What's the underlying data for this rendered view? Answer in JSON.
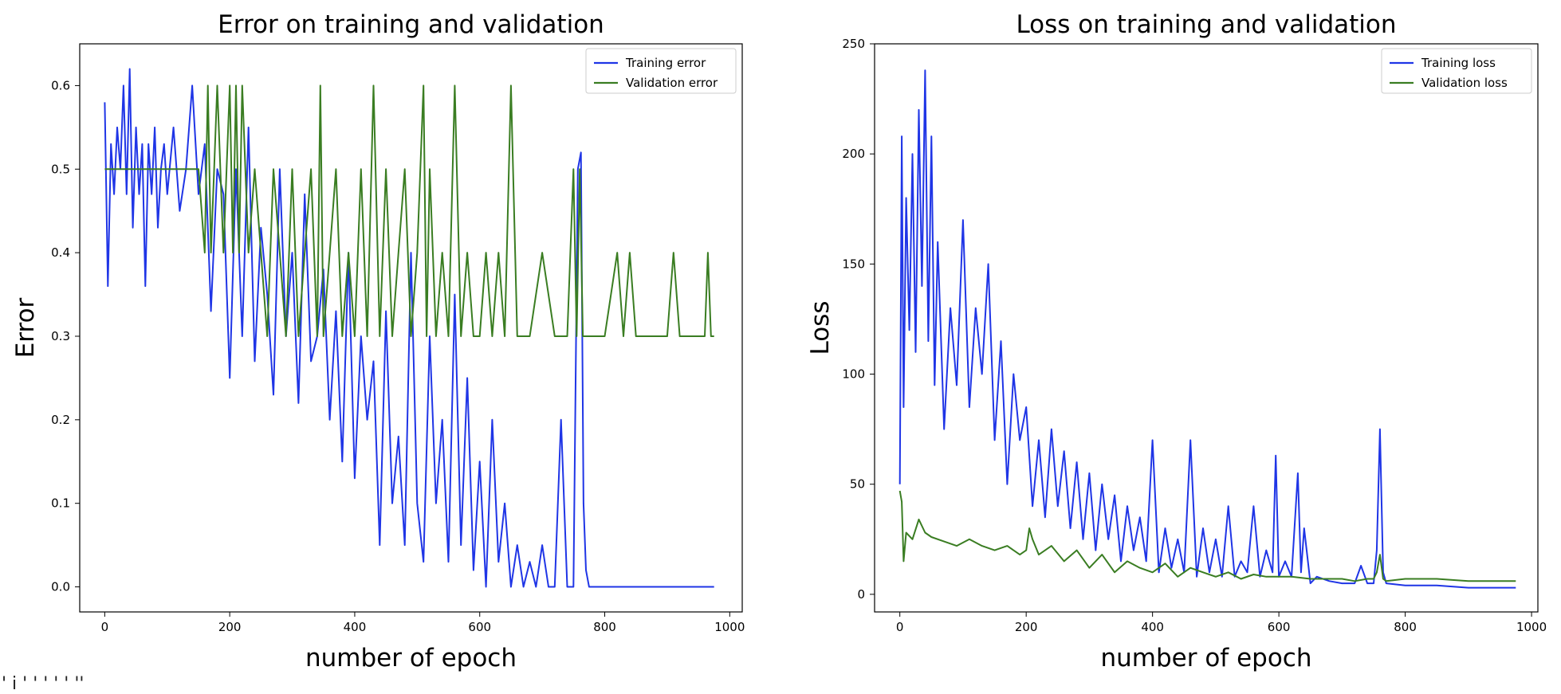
{
  "figure_caption_cutoff": "' i  '  ' ' ' ' ''",
  "chart_data": [
    {
      "type": "line",
      "title": "Error on training and validation",
      "xlabel": "number of epoch",
      "ylabel": "Error",
      "xlim": [
        -40,
        1020
      ],
      "ylim": [
        -0.03,
        0.65
      ],
      "xticks": [
        0,
        200,
        400,
        600,
        800,
        1000
      ],
      "yticks": [
        0.0,
        0.1,
        0.2,
        0.3,
        0.4,
        0.5,
        0.6
      ],
      "xtick_labels": [
        "0",
        "200",
        "400",
        "600",
        "800",
        "1000"
      ],
      "ytick_labels": [
        "0.0",
        "0.1",
        "0.2",
        "0.3",
        "0.4",
        "0.5",
        "0.6"
      ],
      "grid": false,
      "legend": "top-right",
      "series": [
        {
          "name": "Training error",
          "color": "#1f35e6",
          "x": [
            0,
            5,
            10,
            15,
            20,
            25,
            30,
            35,
            40,
            45,
            50,
            55,
            60,
            65,
            70,
            75,
            80,
            85,
            90,
            95,
            100,
            110,
            120,
            130,
            140,
            150,
            160,
            170,
            180,
            190,
            200,
            210,
            220,
            230,
            240,
            250,
            260,
            270,
            280,
            290,
            300,
            310,
            320,
            330,
            340,
            350,
            360,
            370,
            380,
            390,
            400,
            410,
            420,
            430,
            440,
            450,
            460,
            470,
            480,
            490,
            500,
            510,
            520,
            530,
            540,
            550,
            560,
            570,
            580,
            590,
            600,
            610,
            620,
            630,
            640,
            650,
            660,
            670,
            680,
            690,
            700,
            710,
            720,
            730,
            740,
            750,
            757,
            762,
            766,
            770,
            775,
            780,
            790,
            800,
            850,
            900,
            975
          ],
          "y": [
            0.58,
            0.36,
            0.53,
            0.47,
            0.55,
            0.5,
            0.6,
            0.47,
            0.62,
            0.43,
            0.55,
            0.47,
            0.53,
            0.36,
            0.53,
            0.47,
            0.55,
            0.43,
            0.5,
            0.53,
            0.47,
            0.55,
            0.45,
            0.5,
            0.6,
            0.47,
            0.53,
            0.33,
            0.5,
            0.47,
            0.25,
            0.5,
            0.3,
            0.55,
            0.27,
            0.43,
            0.35,
            0.23,
            0.5,
            0.3,
            0.4,
            0.22,
            0.47,
            0.27,
            0.3,
            0.38,
            0.2,
            0.33,
            0.15,
            0.4,
            0.13,
            0.3,
            0.2,
            0.27,
            0.05,
            0.33,
            0.1,
            0.18,
            0.05,
            0.4,
            0.1,
            0.03,
            0.3,
            0.1,
            0.2,
            0.03,
            0.35,
            0.05,
            0.25,
            0.02,
            0.15,
            0.0,
            0.2,
            0.03,
            0.1,
            0.0,
            0.05,
            0.0,
            0.03,
            0.0,
            0.05,
            0.0,
            0.0,
            0.2,
            0.0,
            0.0,
            0.5,
            0.52,
            0.1,
            0.02,
            0.0,
            0.0,
            0.0,
            0.0,
            0.0,
            0.0,
            0.0
          ]
        },
        {
          "name": "Validation error",
          "color": "#3a7d22",
          "x": [
            0,
            50,
            100,
            150,
            160,
            165,
            170,
            175,
            180,
            190,
            195,
            200,
            205,
            210,
            215,
            220,
            230,
            240,
            250,
            260,
            270,
            280,
            290,
            300,
            310,
            320,
            330,
            340,
            345,
            350,
            360,
            370,
            380,
            390,
            400,
            410,
            420,
            430,
            440,
            450,
            460,
            470,
            480,
            490,
            500,
            510,
            515,
            520,
            530,
            540,
            550,
            560,
            570,
            580,
            590,
            600,
            610,
            620,
            630,
            640,
            650,
            660,
            680,
            700,
            720,
            740,
            750,
            755,
            760,
            765,
            770,
            800,
            820,
            830,
            840,
            850,
            900,
            910,
            920,
            960,
            965,
            970,
            975
          ],
          "y": [
            0.5,
            0.5,
            0.5,
            0.5,
            0.4,
            0.6,
            0.4,
            0.5,
            0.6,
            0.4,
            0.5,
            0.6,
            0.4,
            0.6,
            0.4,
            0.6,
            0.4,
            0.5,
            0.4,
            0.3,
            0.5,
            0.4,
            0.3,
            0.5,
            0.3,
            0.4,
            0.5,
            0.3,
            0.6,
            0.3,
            0.4,
            0.5,
            0.3,
            0.4,
            0.3,
            0.5,
            0.3,
            0.6,
            0.3,
            0.5,
            0.3,
            0.4,
            0.5,
            0.3,
            0.4,
            0.6,
            0.3,
            0.5,
            0.3,
            0.4,
            0.3,
            0.6,
            0.3,
            0.4,
            0.3,
            0.3,
            0.4,
            0.3,
            0.4,
            0.3,
            0.6,
            0.3,
            0.3,
            0.4,
            0.3,
            0.3,
            0.5,
            0.3,
            0.5,
            0.3,
            0.3,
            0.3,
            0.4,
            0.3,
            0.4,
            0.3,
            0.3,
            0.4,
            0.3,
            0.3,
            0.4,
            0.3,
            0.3
          ]
        }
      ]
    },
    {
      "type": "line",
      "title": "Loss on training and validation",
      "xlabel": "number of epoch",
      "ylabel": "Loss",
      "xlim": [
        -40,
        1010
      ],
      "ylim": [
        -8,
        250
      ],
      "xticks": [
        0,
        200,
        400,
        600,
        800,
        1000
      ],
      "yticks": [
        0,
        50,
        100,
        150,
        200,
        250
      ],
      "xtick_labels": [
        "0",
        "200",
        "400",
        "600",
        "800",
        "1000"
      ],
      "ytick_labels": [
        "0",
        "50",
        "100",
        "150",
        "200",
        "250"
      ],
      "grid": false,
      "legend": "top-right",
      "series": [
        {
          "name": "Training loss",
          "color": "#1f35e6",
          "x": [
            0,
            3,
            6,
            10,
            15,
            20,
            25,
            30,
            35,
            40,
            45,
            50,
            55,
            60,
            70,
            80,
            90,
            100,
            110,
            120,
            130,
            140,
            150,
            160,
            170,
            180,
            190,
            200,
            210,
            220,
            230,
            240,
            250,
            260,
            270,
            280,
            290,
            300,
            310,
            320,
            330,
            340,
            350,
            360,
            370,
            380,
            390,
            400,
            410,
            420,
            430,
            440,
            450,
            460,
            470,
            480,
            490,
            500,
            510,
            520,
            530,
            540,
            550,
            560,
            570,
            580,
            590,
            595,
            600,
            610,
            620,
            630,
            635,
            640,
            650,
            660,
            680,
            700,
            720,
            730,
            740,
            750,
            755,
            760,
            765,
            770,
            800,
            850,
            900,
            975
          ],
          "y": [
            50,
            208,
            85,
            180,
            120,
            200,
            110,
            220,
            140,
            238,
            115,
            208,
            95,
            160,
            75,
            130,
            95,
            170,
            85,
            130,
            100,
            150,
            70,
            115,
            50,
            100,
            70,
            85,
            40,
            70,
            35,
            75,
            40,
            65,
            30,
            60,
            25,
            55,
            20,
            50,
            25,
            45,
            15,
            40,
            20,
            35,
            15,
            70,
            10,
            30,
            12,
            25,
            10,
            70,
            8,
            30,
            10,
            25,
            8,
            40,
            8,
            15,
            10,
            40,
            8,
            20,
            10,
            63,
            8,
            15,
            8,
            55,
            10,
            30,
            5,
            8,
            6,
            5,
            5,
            13,
            5,
            5,
            20,
            75,
            10,
            5,
            4,
            4,
            3,
            3
          ]
        },
        {
          "name": "Validation loss",
          "color": "#3a7d22",
          "x": [
            0,
            3,
            6,
            10,
            20,
            30,
            40,
            50,
            70,
            90,
            110,
            130,
            150,
            170,
            190,
            200,
            205,
            210,
            220,
            240,
            260,
            280,
            300,
            320,
            340,
            360,
            380,
            400,
            420,
            440,
            460,
            480,
            500,
            520,
            540,
            560,
            580,
            600,
            620,
            650,
            700,
            720,
            740,
            750,
            755,
            760,
            765,
            770,
            800,
            850,
            900,
            975
          ],
          "y": [
            47,
            42,
            15,
            28,
            25,
            34,
            28,
            26,
            24,
            22,
            25,
            22,
            20,
            22,
            18,
            20,
            30,
            25,
            18,
            22,
            15,
            20,
            12,
            18,
            10,
            15,
            12,
            10,
            14,
            8,
            12,
            10,
            8,
            10,
            7,
            9,
            8,
            8,
            8,
            7,
            7,
            6,
            7,
            7,
            10,
            18,
            7,
            6,
            7,
            7,
            6,
            6
          ]
        }
      ]
    }
  ]
}
